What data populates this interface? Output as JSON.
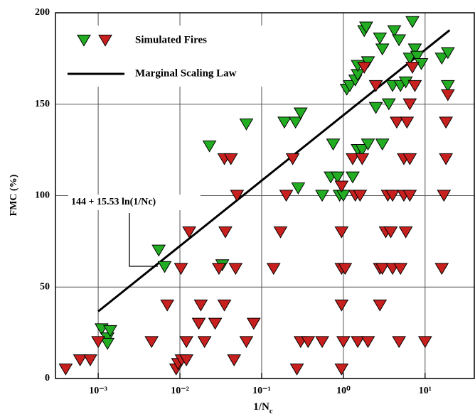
{
  "chart_data": {
    "type": "scatter",
    "x_label": {
      "main": "1/N",
      "sub": "c"
    },
    "y_label": "FMC (%)",
    "annotation": "144 + 15.53 ln(1/Nc)",
    "xscale": "log",
    "xlim": [
      0.0003,
      40
    ],
    "ylim": [
      0,
      200
    ],
    "xticks": [
      {
        "value": 0.001,
        "label": "10⁻³"
      },
      {
        "value": 0.01,
        "label": "10⁻²"
      },
      {
        "value": 0.1,
        "label": "10⁻¹"
      },
      {
        "value": 1,
        "label": "10⁰"
      },
      {
        "value": 10,
        "label": "10¹"
      }
    ],
    "yticks": [
      0,
      50,
      100,
      150,
      200
    ],
    "grid": true,
    "legend": "upper left",
    "series": [
      {
        "name": "Simulated Fires",
        "kind": "scatter",
        "color": "#22ad22",
        "x": [
          0.0011,
          0.0013,
          0.0013,
          0.0014,
          0.0055,
          0.0065,
          0.023,
          0.033,
          0.065,
          0.19,
          0.26,
          0.3,
          0.28,
          0.55,
          0.75,
          0.7,
          0.85,
          0.9,
          1.0,
          1.1,
          1.2,
          1.4,
          1.5,
          1.5,
          1.3,
          1.5,
          1.7,
          2,
          1.8,
          1.9,
          2,
          2.5,
          2.8,
          3,
          3,
          3.6,
          4,
          4.2,
          4.8,
          5,
          5.8,
          6.5,
          7,
          7.5,
          8,
          9,
          16,
          19,
          19
        ],
        "values": [
          27,
          22,
          19,
          26,
          70,
          61,
          127,
          62,
          139,
          140,
          140,
          145,
          104,
          100,
          128,
          110,
          110,
          100,
          100,
          158,
          160,
          163,
          166,
          171,
          110,
          125,
          125,
          128,
          190,
          192,
          173,
          148,
          186,
          180,
          128,
          150,
          160,
          190,
          185,
          160,
          162,
          175,
          195,
          180,
          176,
          172,
          175,
          178,
          160
        ]
      },
      {
        "kind": "scatter",
        "color": "#c8201e",
        "x": [
          0.0004,
          0.0006,
          0.0008,
          0.001,
          0.0045,
          0.007,
          0.009,
          0.0095,
          0.0105,
          0.012,
          0.0103,
          0.012,
          0.013,
          0.017,
          0.018,
          0.02,
          0.027,
          0.03,
          0.035,
          0.035,
          0.036,
          0.042,
          0.046,
          0.05,
          0.048,
          0.065,
          0.08,
          0.14,
          0.17,
          0.2,
          0.24,
          0.27,
          0.3,
          0.37,
          0.55,
          0.95,
          0.95,
          0.95,
          0.95,
          0.95,
          1.05,
          1.0,
          1.3,
          1.4,
          1.5,
          1.6,
          1.7,
          1.8,
          2,
          2.5,
          2.8,
          2.8,
          3,
          3.3,
          3.5,
          3.8,
          4,
          4,
          4.5,
          4.8,
          5,
          5.5,
          5.5,
          5.8,
          6,
          6.5,
          6.5,
          6.5,
          7,
          7.5,
          10,
          16,
          17,
          18,
          18,
          19
        ],
        "values": [
          5,
          10,
          10,
          20,
          20,
          40,
          5,
          8,
          10,
          20,
          60,
          10,
          80,
          30,
          40,
          20,
          30,
          60,
          40,
          120,
          80,
          120,
          10,
          100,
          60,
          20,
          30,
          60,
          80,
          100,
          120,
          5,
          20,
          20,
          20,
          105,
          80,
          60,
          40,
          5,
          60,
          20,
          120,
          100,
          20,
          100,
          120,
          170,
          20,
          160,
          60,
          40,
          60,
          80,
          100,
          80,
          100,
          60,
          140,
          20,
          60,
          120,
          100,
          80,
          140,
          150,
          120,
          100,
          170,
          160,
          20,
          60,
          100,
          120,
          140,
          155
        ]
      },
      {
        "name": "Marginal Scaling Law",
        "kind": "line",
        "color": "#000000",
        "x": [
          0.001,
          20
        ],
        "values": [
          36.7,
          190.5
        ]
      }
    ]
  }
}
